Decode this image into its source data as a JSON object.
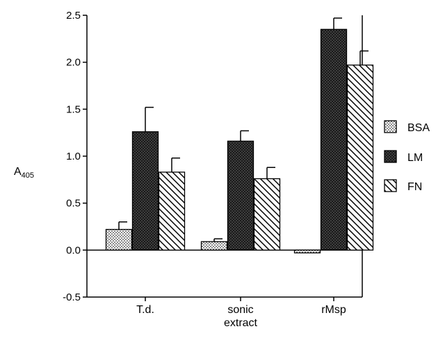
{
  "chart_data": {
    "type": "bar",
    "ylabel": "A",
    "ylabel_subscript": "405",
    "xlabel": "",
    "title": "",
    "ylim": [
      -0.5,
      2.5
    ],
    "yticks": [
      -0.5,
      0.0,
      0.5,
      1.0,
      1.5,
      2.0,
      2.5
    ],
    "ytick_labels": [
      "-0.5",
      "0.0",
      "0.5",
      "1.0",
      "1.5",
      "2.0",
      "2.5"
    ],
    "categories": [
      {
        "lines": [
          "T.d."
        ]
      },
      {
        "lines": [
          "sonic",
          "extract"
        ]
      },
      {
        "lines": [
          "rMsp"
        ]
      }
    ],
    "series": [
      {
        "name": "BSA",
        "pattern": "dots",
        "values": [
          0.22,
          0.09,
          -0.03
        ],
        "errors": [
          0.08,
          0.03,
          0.0
        ]
      },
      {
        "name": "LM",
        "pattern": "dark-crosshatch",
        "values": [
          1.26,
          1.16,
          2.35
        ],
        "errors": [
          0.26,
          0.11,
          0.12
        ]
      },
      {
        "name": "FN",
        "pattern": "diagonal-hatch",
        "values": [
          0.83,
          0.76,
          1.97
        ],
        "errors": [
          0.15,
          0.12,
          0.15
        ]
      }
    ],
    "legend_position": "right",
    "grid": false
  }
}
